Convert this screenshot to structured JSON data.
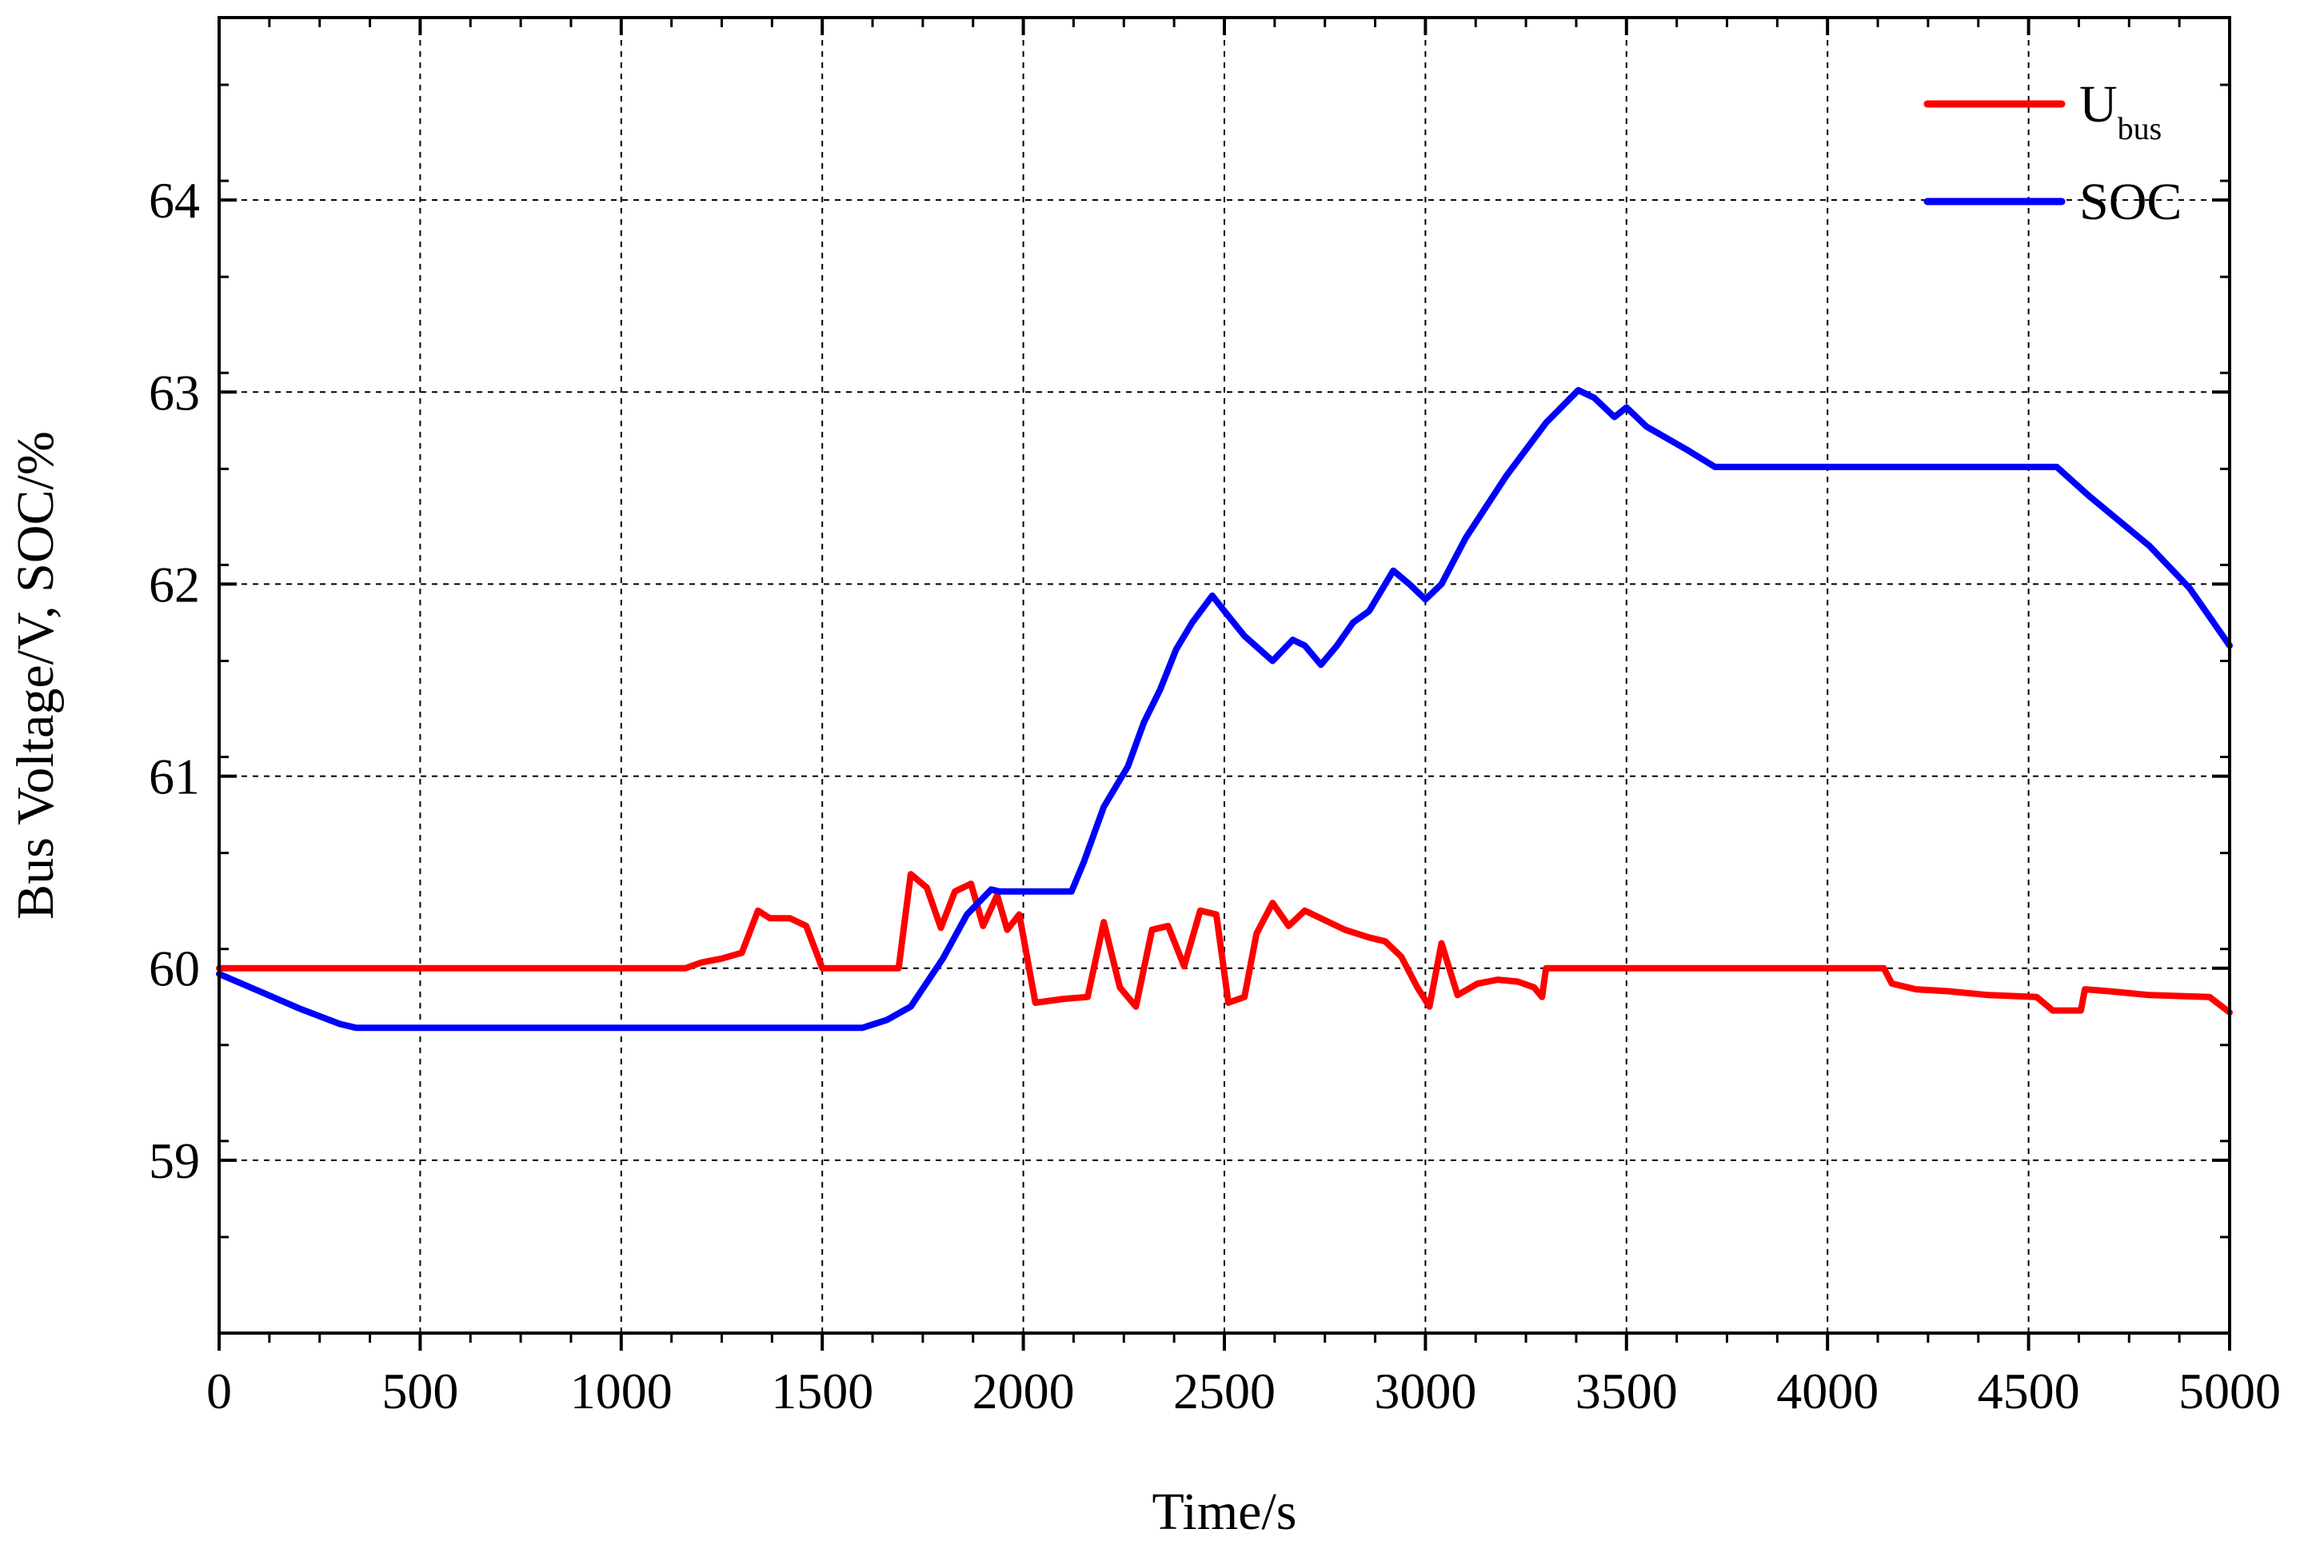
{
  "chart_data": {
    "type": "line",
    "xlabel": "Time/s",
    "ylabel": "Bus Voltage/V, SOC/%",
    "xlim": [
      0,
      5000
    ],
    "ylim": [
      58.1,
      64.95
    ],
    "xticks": [
      0,
      500,
      1000,
      1500,
      2000,
      2500,
      3000,
      3500,
      4000,
      4500,
      5000
    ],
    "yticks": [
      59,
      60,
      61,
      62,
      63,
      64
    ],
    "grid": true,
    "legend_position": "top-right",
    "series": [
      {
        "name": "U",
        "name_subscript": "bus",
        "color": "#ff0000",
        "points": [
          [
            0,
            60.0
          ],
          [
            1160,
            60.0
          ],
          [
            1200,
            60.03
          ],
          [
            1250,
            60.05
          ],
          [
            1300,
            60.08
          ],
          [
            1340,
            60.3
          ],
          [
            1370,
            60.26
          ],
          [
            1420,
            60.26
          ],
          [
            1460,
            60.22
          ],
          [
            1500,
            60.0
          ],
          [
            1690,
            60.0
          ],
          [
            1720,
            60.49
          ],
          [
            1760,
            60.42
          ],
          [
            1795,
            60.21
          ],
          [
            1830,
            60.4
          ],
          [
            1870,
            60.44
          ],
          [
            1900,
            60.22
          ],
          [
            1935,
            60.38
          ],
          [
            1960,
            60.2
          ],
          [
            1990,
            60.28
          ],
          [
            2010,
            60.05
          ],
          [
            2030,
            59.82
          ],
          [
            2100,
            59.84
          ],
          [
            2160,
            59.85
          ],
          [
            2200,
            60.24
          ],
          [
            2240,
            59.9
          ],
          [
            2280,
            59.8
          ],
          [
            2320,
            60.2
          ],
          [
            2360,
            60.22
          ],
          [
            2400,
            60.01
          ],
          [
            2440,
            60.3
          ],
          [
            2480,
            60.28
          ],
          [
            2510,
            59.82
          ],
          [
            2550,
            59.85
          ],
          [
            2580,
            60.18
          ],
          [
            2620,
            60.34
          ],
          [
            2660,
            60.22
          ],
          [
            2700,
            60.3
          ],
          [
            2740,
            60.26
          ],
          [
            2800,
            60.2
          ],
          [
            2860,
            60.16
          ],
          [
            2900,
            60.14
          ],
          [
            2940,
            60.06
          ],
          [
            2980,
            59.9
          ],
          [
            3010,
            59.8
          ],
          [
            3040,
            60.13
          ],
          [
            3080,
            59.86
          ],
          [
            3130,
            59.92
          ],
          [
            3180,
            59.94
          ],
          [
            3230,
            59.93
          ],
          [
            3270,
            59.9
          ],
          [
            3290,
            59.85
          ],
          [
            3300,
            60.0
          ],
          [
            4140,
            60.0
          ],
          [
            4160,
            59.92
          ],
          [
            4220,
            59.89
          ],
          [
            4300,
            59.88
          ],
          [
            4400,
            59.86
          ],
          [
            4520,
            59.85
          ],
          [
            4560,
            59.78
          ],
          [
            4630,
            59.78
          ],
          [
            4640,
            59.89
          ],
          [
            4700,
            59.88
          ],
          [
            4800,
            59.86
          ],
          [
            4950,
            59.85
          ],
          [
            5000,
            59.77
          ]
        ]
      },
      {
        "name": "SOC",
        "color": "#0000ff",
        "points": [
          [
            0,
            59.97
          ],
          [
            100,
            59.88
          ],
          [
            200,
            59.79
          ],
          [
            300,
            59.71
          ],
          [
            340,
            59.69
          ],
          [
            1600,
            59.69
          ],
          [
            1660,
            59.73
          ],
          [
            1720,
            59.8
          ],
          [
            1800,
            60.05
          ],
          [
            1860,
            60.28
          ],
          [
            1920,
            60.41
          ],
          [
            1940,
            60.4
          ],
          [
            2120,
            60.4
          ],
          [
            2150,
            60.55
          ],
          [
            2200,
            60.84
          ],
          [
            2260,
            61.05
          ],
          [
            2300,
            61.28
          ],
          [
            2340,
            61.45
          ],
          [
            2380,
            61.66
          ],
          [
            2420,
            61.8
          ],
          [
            2470,
            61.94
          ],
          [
            2500,
            61.86
          ],
          [
            2550,
            61.73
          ],
          [
            2620,
            61.6
          ],
          [
            2670,
            61.71
          ],
          [
            2700,
            61.68
          ],
          [
            2740,
            61.58
          ],
          [
            2780,
            61.68
          ],
          [
            2820,
            61.8
          ],
          [
            2860,
            61.86
          ],
          [
            2920,
            62.07
          ],
          [
            2960,
            62.0
          ],
          [
            3000,
            61.92
          ],
          [
            3040,
            62.0
          ],
          [
            3100,
            62.24
          ],
          [
            3200,
            62.56
          ],
          [
            3300,
            62.84
          ],
          [
            3380,
            63.01
          ],
          [
            3420,
            62.97
          ],
          [
            3470,
            62.87
          ],
          [
            3500,
            62.92
          ],
          [
            3550,
            62.82
          ],
          [
            3650,
            62.7
          ],
          [
            3720,
            62.61
          ],
          [
            4570,
            62.61
          ],
          [
            4650,
            62.46
          ],
          [
            4800,
            62.2
          ],
          [
            4900,
            61.98
          ],
          [
            5000,
            61.68
          ]
        ]
      }
    ]
  }
}
